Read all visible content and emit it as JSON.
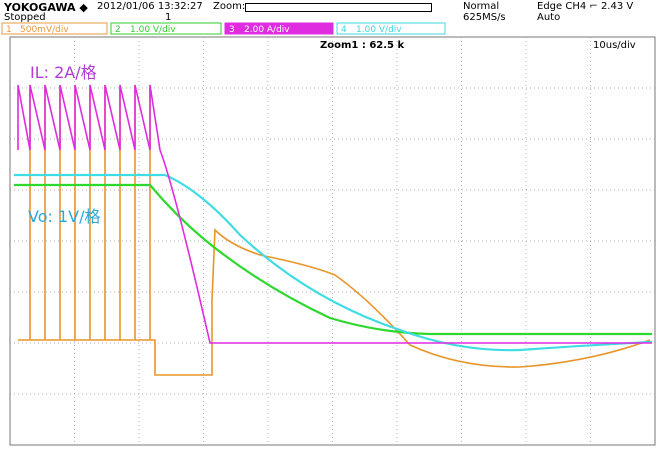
{
  "header": {
    "brand": "YOKOGAWA ◆",
    "datetime": "2012/01/06 13:32:27",
    "zoom": "Zoom:",
    "mode": "Normal",
    "trigger": "Edge CH4 ⌐ 2.43 V",
    "status": "Stopped",
    "acq_count": "1",
    "sample_rate": "625MS/s",
    "trigger_mode": "Auto"
  },
  "channels": [
    {
      "number": "1",
      "scale": "500mV/div"
    },
    {
      "number": "2",
      "scale": "1.00 V/div"
    },
    {
      "number": "3",
      "scale": "2.00 A/div"
    },
    {
      "number": "4",
      "scale": "1.00 V/div"
    }
  ],
  "screen": {
    "zoom_factor": "Zoom1 : 62.5 k",
    "timebase": "10us/div",
    "il_label": "IL: 2A/格",
    "vo_label": "Vo: 1V/格"
  }
}
